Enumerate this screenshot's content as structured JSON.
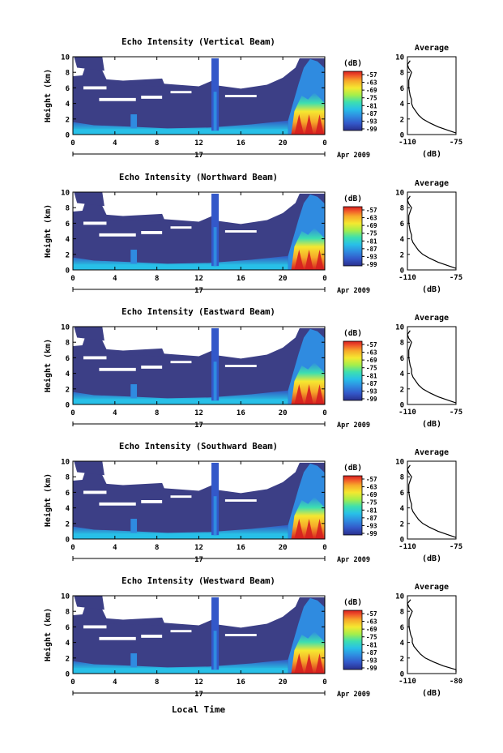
{
  "chart_data": {
    "type": "heatmap",
    "panels": [
      {
        "title": "Echo Intensity (Vertical Beam)",
        "cb_labels": [
          "-57",
          "-63",
          "-69",
          "-75",
          "-81",
          "-87",
          "-93",
          "-99"
        ],
        "avg_xticks": [
          "-110",
          "-75"
        ],
        "avg_xlim": [
          -110,
          -75
        ]
      },
      {
        "title": "Echo Intensity (Northward Beam)",
        "cb_labels": [
          "-57",
          "-63",
          "-69",
          "-75",
          "-81",
          "-87",
          "-93",
          "-99"
        ],
        "avg_xticks": [
          "-110",
          "-75"
        ],
        "avg_xlim": [
          -110,
          -75
        ]
      },
      {
        "title": "Echo Intensity (Eastward Beam)",
        "cb_labels": [
          "-57",
          "-63",
          "-69",
          "-75",
          "-81",
          "-87",
          "-93",
          "-99"
        ],
        "avg_xticks": [
          "-110",
          "-75"
        ],
        "avg_xlim": [
          -110,
          -75
        ]
      },
      {
        "title": "Echo Intensity (Southward Beam)",
        "cb_labels": [
          "-57",
          "-63",
          "-69",
          "-75",
          "-81",
          "-87",
          "-93",
          "-99"
        ],
        "avg_xticks": [
          "-110",
          "-75"
        ],
        "avg_xlim": [
          -110,
          -75
        ]
      },
      {
        "title": "Echo Intensity (Westward Beam)",
        "cb_labels": [
          "-57",
          "-63",
          "-69",
          "-75",
          "-81",
          "-87",
          "-93",
          "-99"
        ],
        "avg_xticks": [
          "-110",
          "-80"
        ],
        "avg_xlim": [
          -110,
          -80
        ]
      }
    ],
    "ylabel": "Height (km)",
    "ylim": [
      0,
      10
    ],
    "yticks": [
      "0",
      "2",
      "4",
      "6",
      "8",
      "10"
    ],
    "xticks": [
      "0",
      "4",
      "8",
      "12",
      "16",
      "20",
      "0"
    ],
    "xlim": [
      0,
      24
    ],
    "date_day": "17",
    "date_month": "Apr 2009",
    "xlabel": "Local Time",
    "colorbar_unit": "(dB)",
    "avg_title": "Average",
    "avg_xlabel": "(dB)",
    "avg_yticks": [
      "0",
      "2",
      "4",
      "6",
      "8",
      "10"
    ],
    "average_profile": {
      "height_km": [
        0.2,
        0.5,
        1,
        1.5,
        2,
        2.5,
        3,
        3.5,
        4,
        4.5,
        5,
        6,
        7,
        7.5,
        8,
        8.5,
        9,
        9.5
      ],
      "db": [
        -75,
        -80,
        -88,
        -94,
        -99,
        -102,
        -104,
        -106,
        -107,
        -107,
        -108,
        -109,
        -109,
        -108,
        -107,
        -109,
        -110,
        -108
      ]
    },
    "colorscale": [
      "#2a2f8c",
      "#3358c9",
      "#2f8be0",
      "#28c0e8",
      "#3ddfb0",
      "#a6ee4a",
      "#f5e830",
      "#f7a92a",
      "#f0562a",
      "#d61f1f"
    ],
    "background_fill": "#3c3f86"
  }
}
